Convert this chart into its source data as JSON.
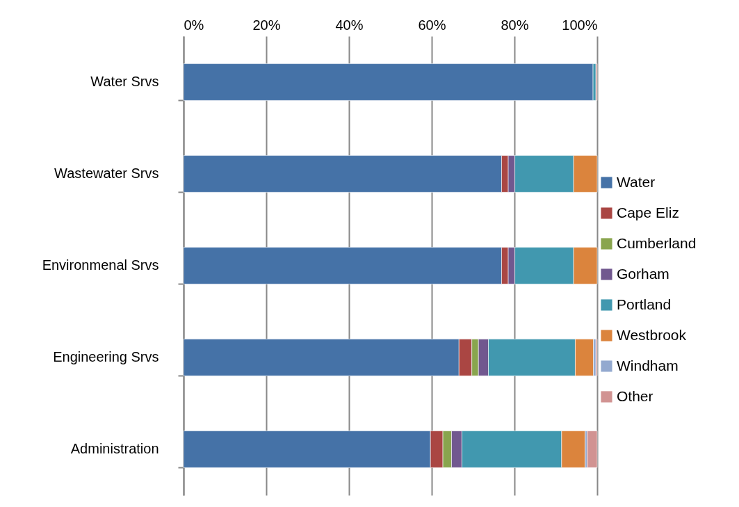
{
  "chart_data": {
    "type": "bar",
    "orientation": "horizontal",
    "stacked": true,
    "categories": [
      "Water Srvs",
      "Wastewater Srvs",
      "Environmenal Srvs",
      "Engineering Srvs",
      "Administration"
    ],
    "series": [
      {
        "name": "Water",
        "color": "#4572a7",
        "values": [
          99.0,
          76.9,
          76.9,
          66.6,
          59.7
        ]
      },
      {
        "name": "Cape Eliz",
        "color": "#aa4643",
        "values": [
          null,
          1.6,
          1.6,
          3.1,
          3.0
        ]
      },
      {
        "name": "Cumberland",
        "color": "#89a54e",
        "values": [
          null,
          null,
          null,
          1.6,
          2.1
        ]
      },
      {
        "name": "Gorham",
        "color": "#71588f",
        "values": [
          null,
          1.6,
          1.6,
          2.4,
          2.5
        ]
      },
      {
        "name": "Portland",
        "color": "#4198af",
        "values": [
          0.7,
          14.2,
          14.2,
          21.0,
          24.1
        ]
      },
      {
        "name": "Westbrook",
        "color": "#db843d",
        "values": [
          null,
          5.7,
          5.7,
          4.4,
          5.7
        ]
      },
      {
        "name": "Windham",
        "color": "#93a9cf",
        "values": [
          null,
          null,
          null,
          0.6,
          0.5
        ]
      },
      {
        "name": "Other",
        "color": "#d19392",
        "values": [
          0.3,
          null,
          null,
          0.3,
          2.4
        ]
      }
    ],
    "xlim": [
      0,
      100
    ],
    "xticks": [
      {
        "value": 0,
        "label": "0%"
      },
      {
        "value": 20,
        "label": "20%"
      },
      {
        "value": 40,
        "label": "40%"
      },
      {
        "value": 60,
        "label": "60%"
      },
      {
        "value": 80,
        "label": "80%"
      },
      {
        "value": 100,
        "label": "100%"
      }
    ],
    "grid": "x",
    "legend": "right"
  }
}
